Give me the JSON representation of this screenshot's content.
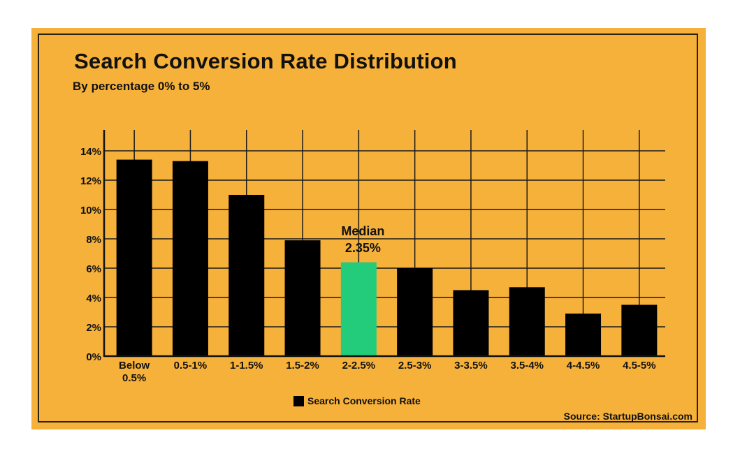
{
  "chart_data": {
    "type": "bar",
    "title": "Search Conversion Rate Distribution",
    "subtitle": "By percentage 0% to 5%",
    "categories": [
      "Below 0.5%",
      "0.5-1%",
      "1-1.5%",
      "1.5-2%",
      "2-2.5%",
      "2.5-3%",
      "3-3.5%",
      "3.5-4%",
      "4-4.5%",
      "4.5-5%"
    ],
    "series": [
      {
        "name": "Search Conversion Rate",
        "values": [
          13.4,
          13.3,
          11.0,
          7.9,
          6.4,
          6.0,
          4.5,
          4.7,
          2.9,
          3.5
        ]
      }
    ],
    "highlight_index": 4,
    "annotation": {
      "line1": "Median",
      "line2": "2.35%"
    },
    "yticks": [
      "0%",
      "2%",
      "4%",
      "6%",
      "8%",
      "10%",
      "12%",
      "14%"
    ],
    "ylim": [
      0,
      14
    ],
    "grid": true,
    "legend_position": "bottom",
    "xlabel": "",
    "ylabel": "",
    "source": "Source: StartupBonsai.com",
    "colors": {
      "background": "#F6B13B",
      "bar": "#000000",
      "highlight": "#22CC7A",
      "grid": "#1a1a1a"
    }
  }
}
